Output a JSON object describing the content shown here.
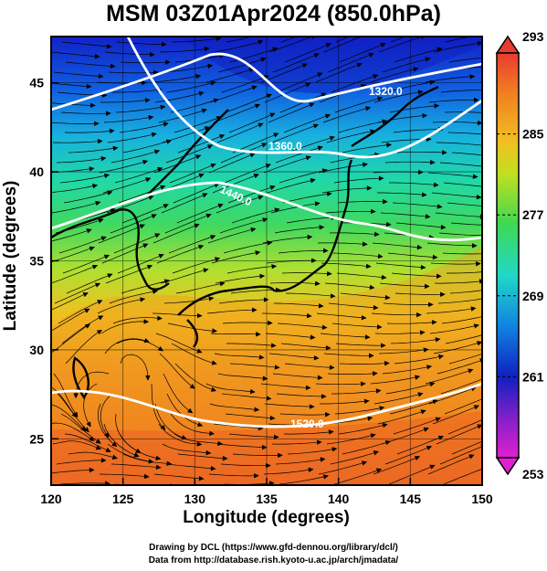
{
  "title": "MSM 03Z01Apr2024 (850.0hPa)",
  "xaxis": {
    "label": "Longitude (degrees)",
    "range": [
      120,
      150
    ],
    "ticks": [
      "120",
      "125",
      "130",
      "135",
      "140",
      "145",
      "150"
    ]
  },
  "yaxis": {
    "label": "Latitude  (degrees)",
    "range": [
      22.4,
      47.6
    ],
    "ticks": [
      "25",
      "30",
      "35",
      "40",
      "45"
    ]
  },
  "colorbar": {
    "range": [
      253,
      293
    ],
    "labels": [
      "293",
      "285",
      "277",
      "269",
      "261",
      "253"
    ]
  },
  "contours": [
    {
      "label": "1320.0"
    },
    {
      "label": "1360.0"
    },
    {
      "label": "1440.0"
    },
    {
      "label": "1520.0"
    }
  ],
  "credit": {
    "line1": "Drawing by DCL (https://www.gfd-dennou.org/library/dcl/)",
    "line2": "Data from http://database.rish.kyoto-u.ac.jp/arch/jmadata/"
  },
  "colors": {
    "cold": "#0a1ed2",
    "mid": "#20d8a0",
    "warm": "#f08820",
    "hot": "#e83c30",
    "contour": "#ffffff",
    "coast": "#000000"
  }
}
